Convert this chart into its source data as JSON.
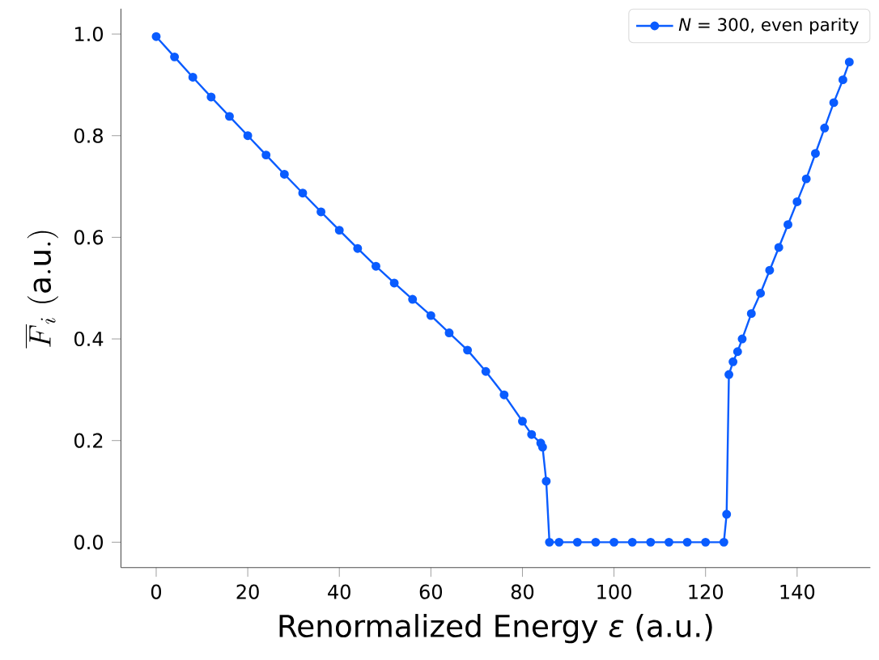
{
  "chart_data": {
    "type": "line",
    "xlabel": "Renormalized Energy *ε* (a.u.)",
    "ylabel": "\\overline{F}_i\\ \\mathrm{(a.u.)}",
    "xlim": [
      -7.7,
      156
    ],
    "ylim": [
      -0.05,
      1.05
    ],
    "xticks": [
      0,
      20,
      40,
      60,
      80,
      100,
      120,
      140
    ],
    "yticks": [
      {
        "value": 0,
        "label": "0.0"
      },
      {
        "value": 0.2,
        "label": "0.2"
      },
      {
        "value": 0.4,
        "label": "0.4"
      },
      {
        "value": 0.6,
        "label": "0.6"
      },
      {
        "value": 0.8,
        "label": "0.8"
      },
      {
        "value": 1,
        "label": "1.0"
      }
    ],
    "legend": "top right",
    "marker": "circle",
    "line_style": "solid",
    "grid": false,
    "series": [
      {
        "name": "*N* = 300, even parity",
        "color": "#0a5cff",
        "x": [
          0,
          4,
          8,
          12,
          16,
          20,
          24,
          28,
          32,
          36,
          40,
          44,
          48,
          52,
          56,
          60,
          64,
          68,
          72,
          76,
          80,
          82,
          84,
          84.4,
          85.2,
          85.9,
          88,
          92,
          96,
          100,
          104,
          108,
          112,
          116,
          120,
          124,
          124.6,
          125.1,
          126,
          127,
          128,
          130,
          132,
          134,
          136,
          138,
          140,
          142,
          144,
          146,
          148,
          150,
          151.4
        ],
        "values": [
          0.995,
          0.955,
          0.915,
          0.876,
          0.838,
          0.8,
          0.762,
          0.724,
          0.687,
          0.65,
          0.614,
          0.578,
          0.543,
          0.51,
          0.478,
          0.446,
          0.412,
          0.378,
          0.336,
          0.29,
          0.238,
          0.212,
          0.195,
          0.187,
          0.12,
          0.0,
          0.0,
          0.0,
          0.0,
          0.0,
          0.0,
          0.0,
          0.0,
          0.0,
          0.0,
          0.0,
          0.055,
          0.33,
          0.355,
          0.375,
          0.4,
          0.45,
          0.49,
          0.535,
          0.58,
          0.625,
          0.67,
          0.715,
          0.765,
          0.815,
          0.865,
          0.91,
          0.945
        ]
      }
    ]
  }
}
